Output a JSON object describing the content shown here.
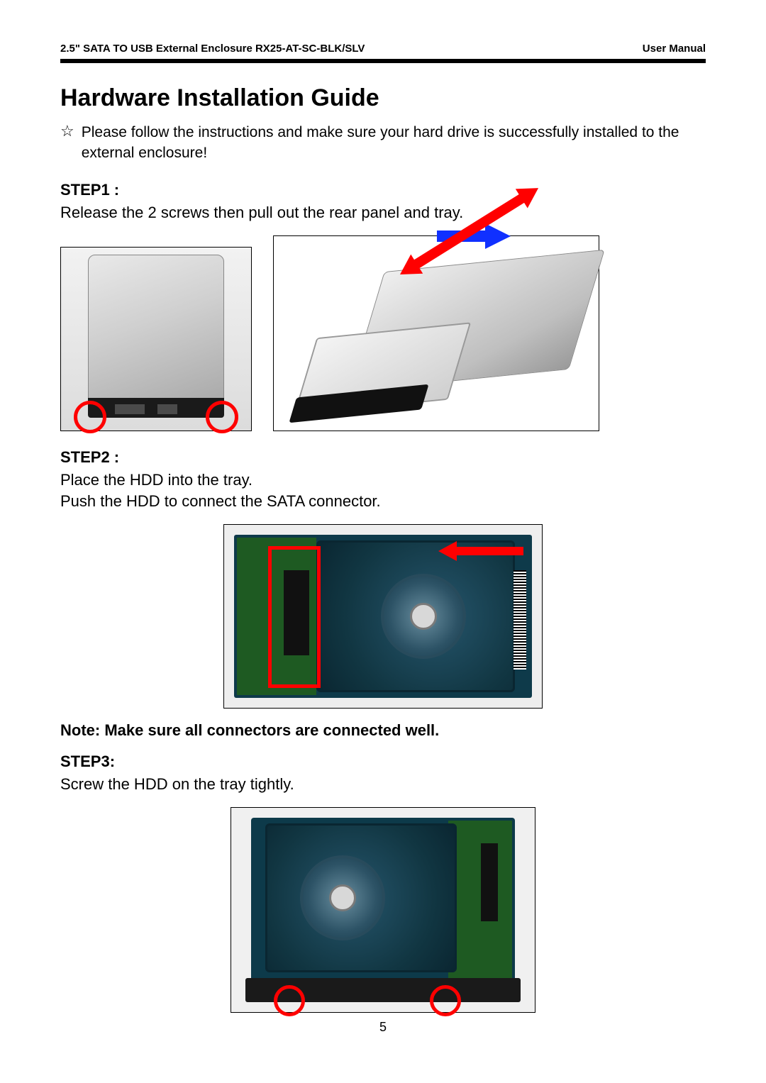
{
  "header": {
    "left_prefix": "2.5\" SATA TO USB External Enclosure ",
    "left_model": "RX25-AT-SC-BLK/SLV",
    "right": "User Manual"
  },
  "title": "Hardware Installation Guide",
  "intro": "Please follow the instructions and make sure your hard drive is successfully installed to the external enclosure!",
  "step1": {
    "label": "STEP1 :",
    "text": "Release the 2 screws then pull out the rear panel and tray.",
    "highlight_color": "#ff0000",
    "direction_arrow_color": "#1030ff",
    "tray_arrow_color": "#ff0000"
  },
  "step2": {
    "label": "STEP2 :",
    "line1": "Place the HDD into the tray.",
    "line2": "Push the HDD to connect the SATA connector.",
    "connector_highlight_color": "#ff0000",
    "push_arrow_color": "#ff0000"
  },
  "note": "Note: Make sure all connectors are connected well.",
  "step3": {
    "label": "STEP3:",
    "text": "Screw the HDD on the tray tightly.",
    "screw_highlight_color": "#ff0000"
  },
  "page_number": "5"
}
